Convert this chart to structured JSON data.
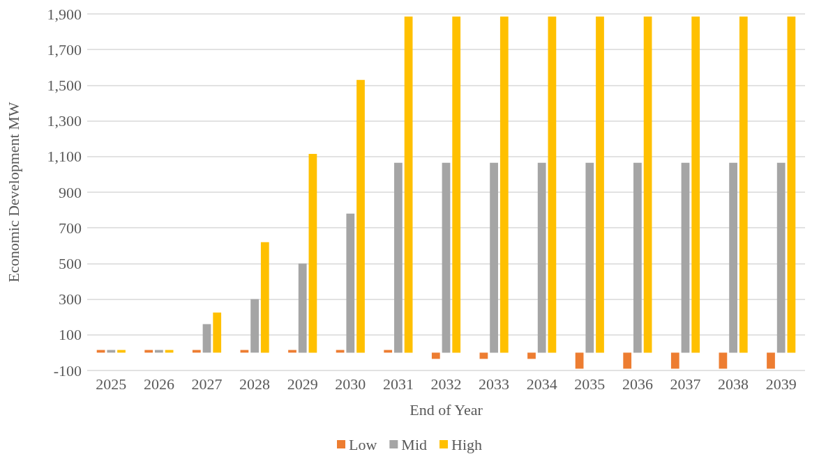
{
  "chart_data": {
    "type": "bar",
    "xlabel": "End of Year",
    "ylabel": "Economic Development MW",
    "categories": [
      "2025",
      "2026",
      "2027",
      "2028",
      "2029",
      "2030",
      "2031",
      "2032",
      "2033",
      "2034",
      "2035",
      "2036",
      "2037",
      "2038",
      "2039"
    ],
    "series": [
      {
        "name": "Low",
        "color": "#ed7d31",
        "values": [
          15,
          15,
          15,
          15,
          15,
          15,
          15,
          -35,
          -35,
          -35,
          -90,
          -90,
          -90,
          -90,
          -90
        ]
      },
      {
        "name": "Mid",
        "color": "#a5a5a5",
        "values": [
          15,
          15,
          160,
          300,
          500,
          780,
          1065,
          1065,
          1065,
          1065,
          1065,
          1065,
          1065,
          1065,
          1065
        ]
      },
      {
        "name": "High",
        "color": "#ffc000",
        "values": [
          15,
          15,
          225,
          620,
          1115,
          1530,
          1885,
          1885,
          1885,
          1885,
          1885,
          1885,
          1885,
          1885,
          1885
        ]
      }
    ],
    "ylim": [
      -100,
      1900
    ],
    "yticks": [
      -100,
      100,
      300,
      500,
      700,
      900,
      {
        "value": 1100,
        "label": "1,100"
      },
      {
        "value": 1300,
        "label": "1,300"
      },
      {
        "value": 1500,
        "label": "1,500"
      },
      {
        "value": 1700,
        "label": "1,700"
      },
      {
        "value": 1900,
        "label": "1,900"
      }
    ],
    "grid": "y",
    "legend": "bottom"
  }
}
